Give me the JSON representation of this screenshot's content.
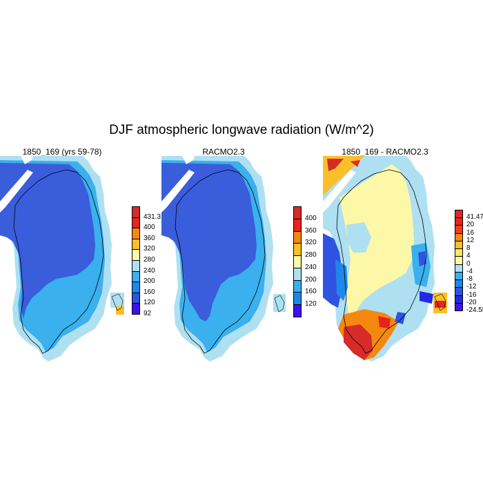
{
  "title": "DJF atmospheric longwave radiation (W/m^2)",
  "panels": [
    {
      "title": "1850_169 (yrs 59-78)",
      "colorbar": {
        "labels": [
          "431.3",
          "400",
          "360",
          "320",
          "280",
          "240",
          "200",
          "160",
          "120",
          "92"
        ],
        "colors": [
          "#d62b28",
          "#e8231d",
          "#f5880e",
          "#fbbf2b",
          "#fdf7a8",
          "#aee0f2",
          "#3ab0ee",
          "#1d88e8",
          "#2f52e0",
          "#3d12ec"
        ]
      }
    },
    {
      "title": "RACMO2.3",
      "colorbar": {
        "labels": [
          "400",
          "360",
          "320",
          "280",
          "240",
          "200",
          "160",
          "120"
        ],
        "colors": [
          "#d62b28",
          "#e8231d",
          "#f5880e",
          "#fbbf2b",
          "#fdf7a8",
          "#aee0f2",
          "#3ab0ee",
          "#1d88e8",
          "#3d12ec"
        ]
      }
    },
    {
      "title": "1850_169 - RACMO2.3",
      "colorbar": {
        "labels": [
          "41.47",
          "20",
          "16",
          "12",
          "8",
          "4",
          "0",
          "-4",
          "-8",
          "-12",
          "-16",
          "-20",
          "-24.55"
        ],
        "colors": [
          "#d62b28",
          "#e8231d",
          "#f23d1a",
          "#f5880e",
          "#fbbf2b",
          "#fde560",
          "#fdf7a8",
          "#aee0f2",
          "#3ab0ee",
          "#1d88e8",
          "#2f52e0",
          "#2528e6",
          "#3d12ec"
        ]
      }
    }
  ],
  "palette": {
    "interior": "#3a5ddc",
    "margin_light": "#aee0f2",
    "margin_mid": "#3ab0ee",
    "yellow": "#fdf7a8",
    "orange": "#fbbf2b",
    "red": "#d62b28"
  }
}
